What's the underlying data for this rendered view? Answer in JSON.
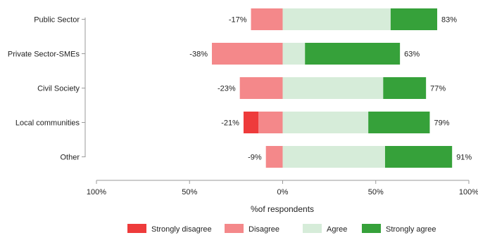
{
  "chart_data": {
    "type": "bar",
    "orientation": "horizontal",
    "stacked": "diverging",
    "xlabel": "%of respondents",
    "xlim": [
      -100,
      100
    ],
    "x_ticks": [
      {
        "value": -100,
        "label": "100%"
      },
      {
        "value": -50,
        "label": "50%"
      },
      {
        "value": 0,
        "label": "0%"
      },
      {
        "value": 50,
        "label": "50%"
      },
      {
        "value": 100,
        "label": "100%"
      }
    ],
    "categories": [
      "Public Sector",
      "Private Sector-SMEs",
      "Civil Society",
      "Local communities",
      "Other"
    ],
    "series": [
      {
        "name": "Strongly disagree",
        "color": "#ee3b3b",
        "values": [
          0,
          0,
          0,
          8,
          0
        ]
      },
      {
        "name": "Disagree",
        "color": "#f4888a",
        "values": [
          17,
          38,
          23,
          13,
          9
        ]
      },
      {
        "name": "Agree",
        "color": "#d6ecd9",
        "values": [
          58,
          12,
          54,
          46,
          55
        ]
      },
      {
        "name": "Strongly agree",
        "color": "#36a13a",
        "values": [
          25,
          51,
          23,
          33,
          36
        ]
      }
    ],
    "negative_labels": [
      "-17%",
      "-38%",
      "-23%",
      "-21%",
      "-9%"
    ],
    "positive_labels": [
      "83%",
      "63%",
      "77%",
      "79%",
      "91%"
    ],
    "legend_position": "bottom"
  }
}
